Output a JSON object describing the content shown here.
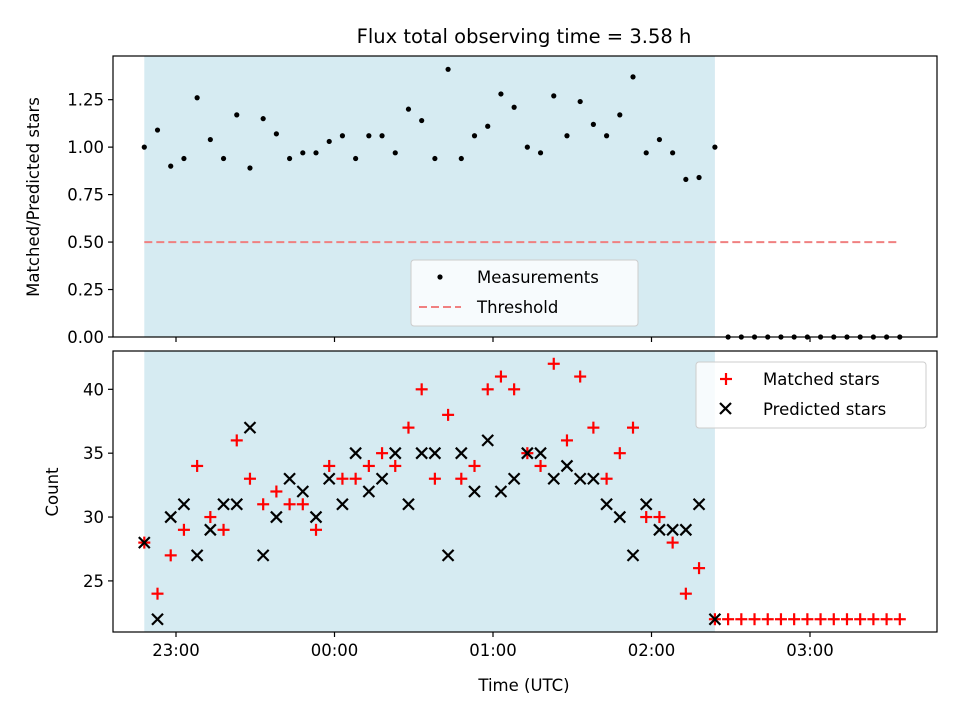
{
  "chart_data": [
    {
      "type": "scatter",
      "title": "Flux total observing time = 3.58 h",
      "xlabel": "",
      "ylabel": "Matched/Predicted stars",
      "ylim": [
        0.0,
        1.48
      ],
      "yticks": [
        "0.00",
        "0.25",
        "0.50",
        "0.75",
        "1.00",
        "1.25"
      ],
      "shaded_span": {
        "start": "22:48",
        "end": "02:24",
        "color": "#add8e6"
      },
      "legend": {
        "placement": "lower center"
      },
      "series": [
        {
          "name": "Measurements",
          "marker": "dot",
          "color": "#000000",
          "x": [
            "22:48",
            "22:53",
            "22:58",
            "23:03",
            "23:08",
            "23:13",
            "23:18",
            "23:23",
            "23:28",
            "23:33",
            "23:38",
            "23:43",
            "23:48",
            "23:53",
            "23:58",
            "00:03",
            "00:08",
            "00:13",
            "00:18",
            "00:23",
            "00:28",
            "00:33",
            "00:38",
            "00:43",
            "00:48",
            "00:53",
            "00:58",
            "01:03",
            "01:08",
            "01:13",
            "01:18",
            "01:23",
            "01:28",
            "01:33",
            "01:38",
            "01:43",
            "01:48",
            "01:53",
            "01:58",
            "02:03",
            "02:08",
            "02:13",
            "02:18",
            "02:24",
            "02:29",
            "02:34",
            "02:39",
            "02:44",
            "02:49",
            "02:54",
            "02:59",
            "03:04",
            "03:09",
            "03:14",
            "03:19",
            "03:24",
            "03:29",
            "03:34"
          ],
          "y": [
            1.0,
            1.09,
            0.9,
            0.94,
            1.26,
            1.04,
            0.94,
            1.17,
            0.89,
            1.15,
            1.07,
            0.94,
            0.97,
            0.97,
            1.03,
            1.06,
            0.94,
            1.06,
            1.06,
            0.97,
            1.2,
            1.14,
            0.94,
            1.41,
            0.94,
            1.06,
            1.11,
            1.28,
            1.21,
            1.0,
            0.97,
            1.27,
            1.06,
            1.24,
            1.12,
            1.06,
            1.17,
            1.37,
            0.97,
            1.04,
            0.97,
            0.83,
            0.84,
            1.0,
            0,
            0,
            0,
            0,
            0,
            0,
            0,
            0,
            0,
            0,
            0,
            0,
            0,
            0
          ]
        },
        {
          "name": "Threshold",
          "marker": "dashed-line",
          "color": "#f08080",
          "x": [
            "22:48",
            "03:34"
          ],
          "y": [
            0.5,
            0.5
          ]
        }
      ]
    },
    {
      "type": "scatter",
      "title": "",
      "xlabel": "Time (UTC)",
      "ylabel": "Count",
      "ylim": [
        21,
        43
      ],
      "yticks": [
        "25",
        "30",
        "35",
        "40"
      ],
      "xticks": [
        "23:00",
        "00:00",
        "01:00",
        "02:00",
        "03:00"
      ],
      "shaded_span": {
        "start": "22:48",
        "end": "02:24",
        "color": "#add8e6"
      },
      "legend": {
        "placement": "top-right"
      },
      "series": [
        {
          "name": "Matched stars",
          "marker": "plus",
          "color": "#ff0000",
          "x": [
            "22:48",
            "22:53",
            "22:58",
            "23:03",
            "23:08",
            "23:13",
            "23:18",
            "23:23",
            "23:28",
            "23:33",
            "23:38",
            "23:43",
            "23:48",
            "23:53",
            "23:58",
            "00:03",
            "00:08",
            "00:13",
            "00:18",
            "00:23",
            "00:28",
            "00:33",
            "00:38",
            "00:43",
            "00:48",
            "00:53",
            "00:58",
            "01:03",
            "01:08",
            "01:13",
            "01:18",
            "01:23",
            "01:28",
            "01:33",
            "01:38",
            "01:43",
            "01:48",
            "01:53",
            "01:58",
            "02:03",
            "02:08",
            "02:13",
            "02:18",
            "02:24",
            "02:29",
            "02:34",
            "02:39",
            "02:44",
            "02:49",
            "02:54",
            "02:59",
            "03:04",
            "03:09",
            "03:14",
            "03:19",
            "03:24",
            "03:29",
            "03:34"
          ],
          "y": [
            28,
            24,
            27,
            29,
            34,
            30,
            29,
            36,
            33,
            31,
            32,
            31,
            31,
            29,
            34,
            33,
            33,
            34,
            35,
            34,
            37,
            40,
            33,
            38,
            33,
            34,
            40,
            41,
            40,
            35,
            34,
            42,
            36,
            41,
            37,
            33,
            35,
            37,
            30,
            30,
            28,
            24,
            26,
            22,
            22,
            22,
            22,
            22,
            22,
            22,
            22,
            22,
            22,
            22,
            22,
            22,
            22,
            22
          ]
        },
        {
          "name": "Predicted stars",
          "marker": "x",
          "color": "#000000",
          "x": [
            "22:48",
            "22:53",
            "22:58",
            "23:03",
            "23:08",
            "23:13",
            "23:18",
            "23:23",
            "23:28",
            "23:33",
            "23:38",
            "23:43",
            "23:48",
            "23:53",
            "23:58",
            "00:03",
            "00:08",
            "00:13",
            "00:18",
            "00:23",
            "00:28",
            "00:33",
            "00:38",
            "00:43",
            "00:48",
            "00:53",
            "00:58",
            "01:03",
            "01:08",
            "01:13",
            "01:18",
            "01:23",
            "01:28",
            "01:33",
            "01:38",
            "01:43",
            "01:48",
            "01:53",
            "01:58",
            "02:03",
            "02:08",
            "02:13",
            "02:18",
            "02:24"
          ],
          "y": [
            28,
            22,
            30,
            31,
            27,
            29,
            31,
            31,
            37,
            27,
            30,
            33,
            32,
            30,
            33,
            31,
            35,
            32,
            33,
            35,
            31,
            35,
            35,
            27,
            35,
            32,
            36,
            32,
            33,
            35,
            35,
            33,
            34,
            33,
            33,
            31,
            30,
            27,
            31,
            29,
            29,
            29,
            31,
            22
          ]
        }
      ]
    }
  ]
}
